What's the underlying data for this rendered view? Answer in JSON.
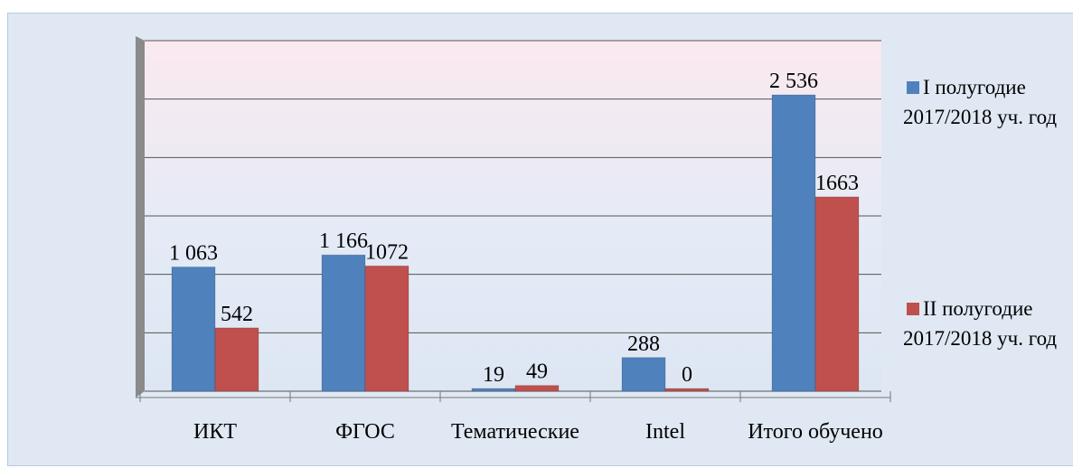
{
  "chart_data": {
    "type": "bar",
    "categories": [
      "ИКТ",
      "ФГОС",
      "Тематические",
      "Intel",
      "Итого обучено"
    ],
    "series": [
      {
        "name": "I полугодие 2017/2018 уч. год",
        "color": "#4f81bd",
        "values": [
          1063,
          1166,
          19,
          288,
          2536
        ],
        "value_labels": [
          "1 063",
          "1 166",
          "19",
          "288",
          "2 536"
        ]
      },
      {
        "name": "II полугодие 2017/2018 уч. год",
        "color": "#c0504d",
        "values": [
          542,
          1072,
          49,
          0,
          1663
        ]
      }
    ],
    "ylim": [
      0,
      3000
    ],
    "yticks": [
      0,
      500,
      1000,
      1500,
      2000,
      2500,
      3000
    ],
    "grid": true,
    "legend": "right"
  }
}
